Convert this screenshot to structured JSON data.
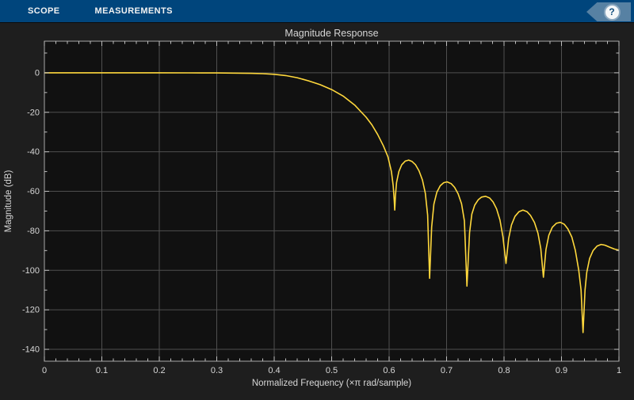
{
  "toolbar": {
    "tabs": [
      {
        "label": "SCOPE"
      },
      {
        "label": "MEASUREMENTS"
      }
    ],
    "help_label": "?"
  },
  "colors": {
    "toolbar_bg": "#00457c",
    "figure_bg": "#1e1e1e",
    "axes_bg": "#111111",
    "grid": "#4f4f4f",
    "axis_border": "#a8a8a8",
    "tick": "#bfbfbf",
    "text": "#d6d6d6",
    "line": "#ffd83c",
    "help_tag_bg": "#5781a3",
    "help_circle_bg": "#f5f7f9",
    "help_circle_ring": "#8aa7bf",
    "help_question": "#134f7e"
  },
  "chart_data": {
    "type": "line",
    "title": "Magnitude Response",
    "xlabel": "Normalized Frequency (×π rad/sample)",
    "ylabel": "Magnitude (dB)",
    "xlim": [
      0,
      1
    ],
    "ylim": [
      -146,
      16
    ],
    "grid": true,
    "legend_position": "none",
    "xticks": [
      0,
      0.1,
      0.2,
      0.3,
      0.4,
      0.5,
      0.6,
      0.7,
      0.8,
      0.9,
      1
    ],
    "xtick_labels": [
      "0",
      "0.1",
      "0.2",
      "0.3",
      "0.4",
      "0.5",
      "0.6",
      "0.7",
      "0.8",
      "0.9",
      "1"
    ],
    "yticks": [
      0,
      -20,
      -40,
      -60,
      -80,
      -100,
      -120,
      -140
    ],
    "ytick_labels": [
      "0",
      "-20",
      "-40",
      "-60",
      "-80",
      "-100",
      "-120",
      "-140"
    ],
    "x_minor_step": 0.02,
    "y_minor_step": 10,
    "series": [
      {
        "name": "magnitude-response",
        "color": "#ffd83c",
        "points": [
          [
            0,
            0
          ],
          [
            0.05,
            0
          ],
          [
            0.1,
            0
          ],
          [
            0.15,
            0
          ],
          [
            0.2,
            -0.01
          ],
          [
            0.25,
            -0.03
          ],
          [
            0.3,
            -0.08
          ],
          [
            0.33,
            -0.15
          ],
          [
            0.36,
            -0.28
          ],
          [
            0.38,
            -0.45
          ],
          [
            0.4,
            -0.75
          ],
          [
            0.42,
            -1.4
          ],
          [
            0.44,
            -2.5
          ],
          [
            0.46,
            -4.1
          ],
          [
            0.48,
            -6.0
          ],
          [
            0.5,
            -8.5
          ],
          [
            0.52,
            -11.8
          ],
          [
            0.54,
            -16.3
          ],
          [
            0.56,
            -22.5
          ],
          [
            0.57,
            -26.3
          ],
          [
            0.58,
            -31.2
          ],
          [
            0.59,
            -37.0
          ],
          [
            0.598,
            -42.5
          ],
          [
            0.604,
            -50.0
          ],
          [
            0.607,
            -57.0
          ],
          [
            0.609,
            -65.0
          ],
          [
            0.6098,
            -69.5
          ],
          [
            0.611,
            -62.0
          ],
          [
            0.613,
            -55.5
          ],
          [
            0.617,
            -50.0
          ],
          [
            0.622,
            -46.6
          ],
          [
            0.628,
            -44.7
          ],
          [
            0.634,
            -44.2
          ],
          [
            0.64,
            -44.9
          ],
          [
            0.646,
            -46.6
          ],
          [
            0.652,
            -49.6
          ],
          [
            0.658,
            -54.2
          ],
          [
            0.663,
            -61.0
          ],
          [
            0.667,
            -72.0
          ],
          [
            0.6705,
            -104.0
          ],
          [
            0.674,
            -78.0
          ],
          [
            0.678,
            -66.5
          ],
          [
            0.683,
            -60.5
          ],
          [
            0.689,
            -57.2
          ],
          [
            0.695,
            -55.6
          ],
          [
            0.701,
            -55.2
          ],
          [
            0.708,
            -56.1
          ],
          [
            0.714,
            -58.0
          ],
          [
            0.72,
            -61.2
          ],
          [
            0.726,
            -66.3
          ],
          [
            0.731,
            -75.0
          ],
          [
            0.7355,
            -108.0
          ],
          [
            0.74,
            -81.0
          ],
          [
            0.744,
            -71.5
          ],
          [
            0.749,
            -67.0
          ],
          [
            0.755,
            -64.3
          ],
          [
            0.761,
            -62.9
          ],
          [
            0.768,
            -62.5
          ],
          [
            0.775,
            -63.4
          ],
          [
            0.781,
            -65.4
          ],
          [
            0.787,
            -68.9
          ],
          [
            0.793,
            -74.6
          ],
          [
            0.798,
            -83.0
          ],
          [
            0.8035,
            -96.5
          ],
          [
            0.808,
            -84.0
          ],
          [
            0.813,
            -77.0
          ],
          [
            0.819,
            -72.7
          ],
          [
            0.826,
            -70.3
          ],
          [
            0.833,
            -69.5
          ],
          [
            0.84,
            -70.3
          ],
          [
            0.846,
            -72.2
          ],
          [
            0.853,
            -75.8
          ],
          [
            0.859,
            -81.2
          ],
          [
            0.864,
            -89.0
          ],
          [
            0.8685,
            -103.5
          ],
          [
            0.873,
            -89.5
          ],
          [
            0.878,
            -82.3
          ],
          [
            0.884,
            -78.2
          ],
          [
            0.891,
            -76.2
          ],
          [
            0.898,
            -75.7
          ],
          [
            0.905,
            -76.7
          ],
          [
            0.911,
            -79.0
          ],
          [
            0.918,
            -83.2
          ],
          [
            0.924,
            -89.8
          ],
          [
            0.93,
            -100.0
          ],
          [
            0.934,
            -110.0
          ],
          [
            0.9375,
            -131.5
          ],
          [
            0.941,
            -110.0
          ],
          [
            0.944,
            -101.0
          ],
          [
            0.949,
            -94.0
          ],
          [
            0.955,
            -90.0
          ],
          [
            0.962,
            -87.7
          ],
          [
            0.969,
            -86.9
          ],
          [
            0.976,
            -87.3
          ],
          [
            0.984,
            -88.3
          ],
          [
            0.992,
            -89.2
          ],
          [
            1.0,
            -89.8
          ]
        ]
      }
    ]
  }
}
